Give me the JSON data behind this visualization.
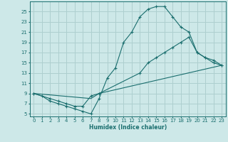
{
  "bg_color": "#cde8e8",
  "grid_color": "#aecfcf",
  "line_color": "#1a6e6e",
  "xlabel": "Humidex (Indice chaleur)",
  "xlim": [
    -0.5,
    23.5
  ],
  "ylim": [
    4.5,
    27
  ],
  "xticks": [
    0,
    1,
    2,
    3,
    4,
    5,
    6,
    7,
    8,
    9,
    10,
    11,
    12,
    13,
    14,
    15,
    16,
    17,
    18,
    19,
    20,
    21,
    22,
    23
  ],
  "yticks": [
    5,
    7,
    9,
    11,
    13,
    15,
    17,
    19,
    21,
    23,
    25
  ],
  "line1_x": [
    0,
    1,
    2,
    3,
    4,
    5,
    6,
    7,
    8,
    9,
    10,
    11,
    12,
    13,
    14,
    15,
    16,
    17,
    18,
    19,
    20,
    21,
    22,
    23
  ],
  "line1_y": [
    9,
    8.5,
    7.5,
    7,
    6.5,
    6,
    5.5,
    5,
    8,
    12,
    14,
    19,
    21,
    24,
    25.5,
    26,
    26,
    24,
    22,
    21,
    17,
    16,
    15,
    14.5
  ],
  "line2_x": [
    0,
    2,
    3,
    4,
    5,
    6,
    7,
    8,
    13,
    14,
    15,
    16,
    17,
    18,
    19,
    20,
    21,
    22,
    23
  ],
  "line2_y": [
    9,
    8,
    7.5,
    7,
    6.5,
    6.5,
    8.5,
    9,
    13,
    15,
    16,
    17,
    18,
    19,
    20,
    17,
    16,
    15.5,
    14.5
  ],
  "line3_x": [
    0,
    7,
    8,
    23
  ],
  "line3_y": [
    9,
    8,
    9,
    14.5
  ]
}
